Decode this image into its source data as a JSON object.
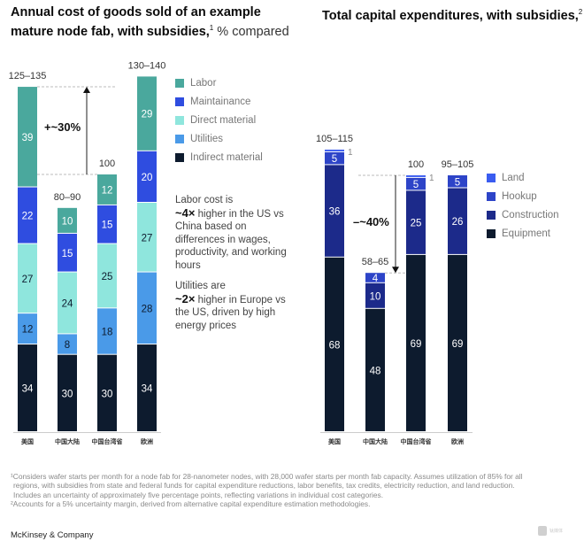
{
  "titles": {
    "left_bold": "Annual cost of goods sold of an example mature node fab, with subsidies,",
    "left_sup": "1",
    "left_light": " % compared",
    "right_bold": "Total capital expenditures, with subsidies,",
    "right_sup": "2"
  },
  "chart_data": [
    {
      "type": "bar",
      "stacked": true,
      "title": "Annual cost of goods sold of an example mature node fab, with subsidies, % compared",
      "categories": [
        "美国",
        "中国大陆",
        "中国台湾省",
        "欧洲"
      ],
      "totals_labels": [
        "125–135",
        "80–90",
        "100",
        "130–140"
      ],
      "series": [
        {
          "name": "Indirect material",
          "color": "#0d1b2e",
          "values": [
            34,
            30,
            30,
            34
          ]
        },
        {
          "name": "Utilities",
          "color": "#4a9ae8",
          "values": [
            12,
            8,
            18,
            28
          ]
        },
        {
          "name": "Direct material",
          "color": "#8fe6dd",
          "values": [
            27,
            24,
            25,
            27
          ]
        },
        {
          "name": "Maintainance",
          "color": "#2f4de0",
          "values": [
            22,
            15,
            15,
            20
          ]
        },
        {
          "name": "Labor",
          "color": "#4aa89d",
          "values": [
            39,
            10,
            12,
            29
          ]
        }
      ],
      "legend_order": [
        "Labor",
        "Maintainance",
        "Direct material",
        "Utilities",
        "Indirect material"
      ],
      "annotation": {
        "text": "+~30%",
        "from_category": "中国台湾省",
        "to_category": "美国",
        "direction": "up"
      },
      "legend": "right"
    },
    {
      "type": "bar",
      "stacked": true,
      "title": "Total capital expenditures, with subsidies",
      "categories": [
        "美国",
        "中国大陆",
        "中国台湾省",
        "欧洲"
      ],
      "totals_labels": [
        "105–115",
        "58–65",
        "100",
        "95–105"
      ],
      "series": [
        {
          "name": "Equipment",
          "color": "#0d1b2e",
          "values": [
            68,
            48,
            69,
            69
          ]
        },
        {
          "name": "Construction",
          "color": "#1c2a8a",
          "values": [
            36,
            10,
            25,
            26
          ]
        },
        {
          "name": "Hookup",
          "color": "#2d44c8",
          "values": [
            5,
            4,
            5,
            5
          ]
        },
        {
          "name": "Land",
          "color": "#3a5cf0",
          "values": [
            1,
            0,
            1,
            0
          ]
        }
      ],
      "legend_order": [
        "Land",
        "Hookup",
        "Construction",
        "Equipment"
      ],
      "annotation": {
        "text": "–~40%",
        "from_category": "中国台湾省",
        "to_category": "中国大陆",
        "direction": "down"
      },
      "legend": "right"
    }
  ],
  "notes": {
    "labor": {
      "pre": "Labor cost is",
      "bold": "~4×",
      "post": " higher in the US vs China based on differences in wages, productivity, and working hours"
    },
    "utilities": {
      "pre": "Utilities are",
      "bold": "~2×",
      "post": " higher in Europe vs the US, driven by high energy prices"
    }
  },
  "footnotes": [
    "¹Considers wafer starts per month for a node fab for 28-nanometer nodes, with 28,000 wafer starts per month fab capacity. Assumes utilization of 85% for all",
    "  regions, with subsidies from state and federal funds for capital expenditure reductions, labor benefits, tax credits, electricity reduction, and land reduction.",
    "  Includes an uncertainty of approximately five percentage points, reflecting variations in individual cost categories.",
    "²Accounts for a 5% uncertainty margin, derived from alternative capital expenditure estimation methodologies."
  ],
  "brand": "McKinsey & Company",
  "watermark": "钛媒体"
}
